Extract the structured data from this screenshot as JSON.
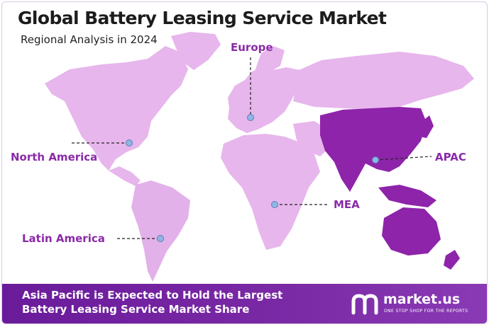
{
  "header": {
    "title": "Global Battery Leasing Service Market",
    "subtitle": "Regional Analysis in 2024"
  },
  "regions": [
    {
      "id": "europe",
      "label": "Europe"
    },
    {
      "id": "north-america",
      "label": "North America"
    },
    {
      "id": "apac",
      "label": "APAC"
    },
    {
      "id": "mea",
      "label": "MEA"
    },
    {
      "id": "latin-america",
      "label": "Latin America"
    }
  ],
  "highlighted_region": "APAC",
  "colors": {
    "land": "#e7b6ec",
    "highlight": "#8e24aa",
    "label": "#8a2aa8",
    "marker": "#8fb6e6",
    "footer": "#6a1b9a"
  },
  "footer": {
    "line1": "Asia Pacific is Expected to Hold the Largest",
    "line2": "Battery Leasing Service Market Share"
  },
  "brand": {
    "name": "market.us",
    "tagline": "ONE STOP SHOP FOR THE REPORTS",
    "icon": "market-us-logo-icon"
  }
}
